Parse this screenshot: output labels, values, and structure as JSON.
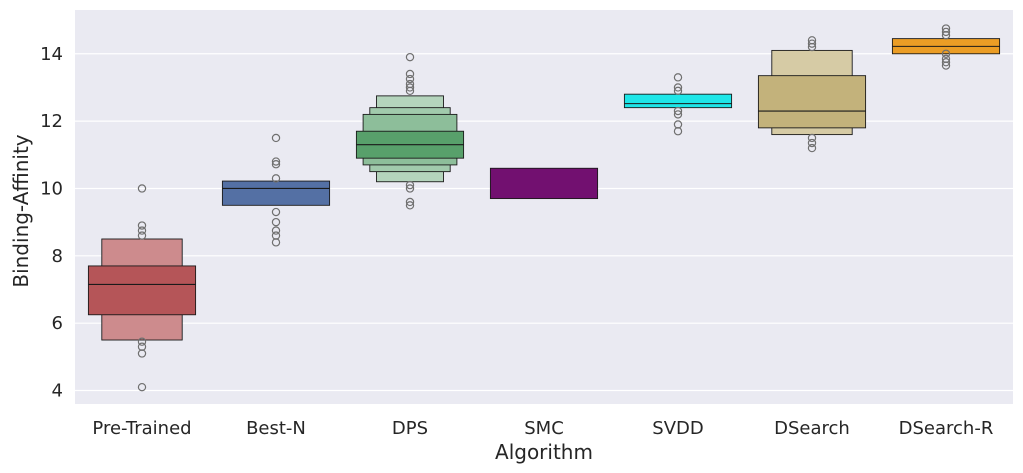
{
  "chart_data": {
    "type": "boxen",
    "title": "",
    "xlabel": "Algorithm",
    "ylabel": "Binding-Affinity",
    "ylim": [
      3.6,
      15.3
    ],
    "yticks": [
      4,
      6,
      8,
      10,
      12,
      14
    ],
    "grid": true,
    "legend": "none",
    "categories": [
      "Pre-Trained",
      "Best-N",
      "DPS",
      "SMC",
      "SVDD",
      "DSearch",
      "DSearch-R"
    ],
    "series": [
      {
        "name": "Pre-Trained",
        "color": "#b55558",
        "median": 7.15,
        "levels": [
          [
            6.25,
            7.7
          ],
          [
            5.5,
            8.5
          ]
        ],
        "outliers": [
          10.0,
          8.9,
          8.75,
          8.6,
          5.45,
          5.3,
          5.1,
          4.1
        ]
      },
      {
        "name": "Best-N",
        "color": "#5470a4",
        "median": 10.0,
        "levels": [
          [
            9.5,
            10.22
          ]
        ],
        "outliers": [
          11.5,
          10.8,
          10.72,
          10.3,
          9.3,
          9.0,
          8.75,
          8.6,
          8.4
        ]
      },
      {
        "name": "DPS",
        "color": "#58a06b",
        "median": 11.3,
        "levels": [
          [
            10.9,
            11.7
          ],
          [
            10.7,
            12.2
          ],
          [
            10.5,
            12.4
          ],
          [
            10.2,
            12.75
          ]
        ],
        "outliers": [
          13.9,
          13.4,
          13.25,
          13.1,
          13.0,
          12.9,
          10.1,
          10.0,
          9.6,
          9.5
        ]
      },
      {
        "name": "SMC",
        "color": "#721070",
        "median": null,
        "levels": [
          [
            9.7,
            10.6
          ]
        ],
        "outliers": []
      },
      {
        "name": "SVDD",
        "color": "#1ee6e8",
        "median": 12.52,
        "levels": [
          [
            12.4,
            12.8
          ]
        ],
        "outliers": [
          13.3,
          13.0,
          12.9,
          12.3,
          12.2,
          11.9,
          11.7
        ]
      },
      {
        "name": "DSearch",
        "color": "#c3b27b",
        "median": 12.3,
        "levels": [
          [
            11.8,
            13.35
          ],
          [
            11.6,
            14.1
          ]
        ],
        "outliers": [
          14.4,
          14.3,
          14.2,
          11.5,
          11.35,
          11.2
        ]
      },
      {
        "name": "DSearch-R",
        "color": "#eb9d25",
        "median": 14.22,
        "levels": [
          [
            14.0,
            14.45
          ]
        ],
        "outliers": [
          14.75,
          14.65,
          14.55,
          14.0,
          13.85,
          13.75,
          13.65
        ]
      }
    ]
  }
}
